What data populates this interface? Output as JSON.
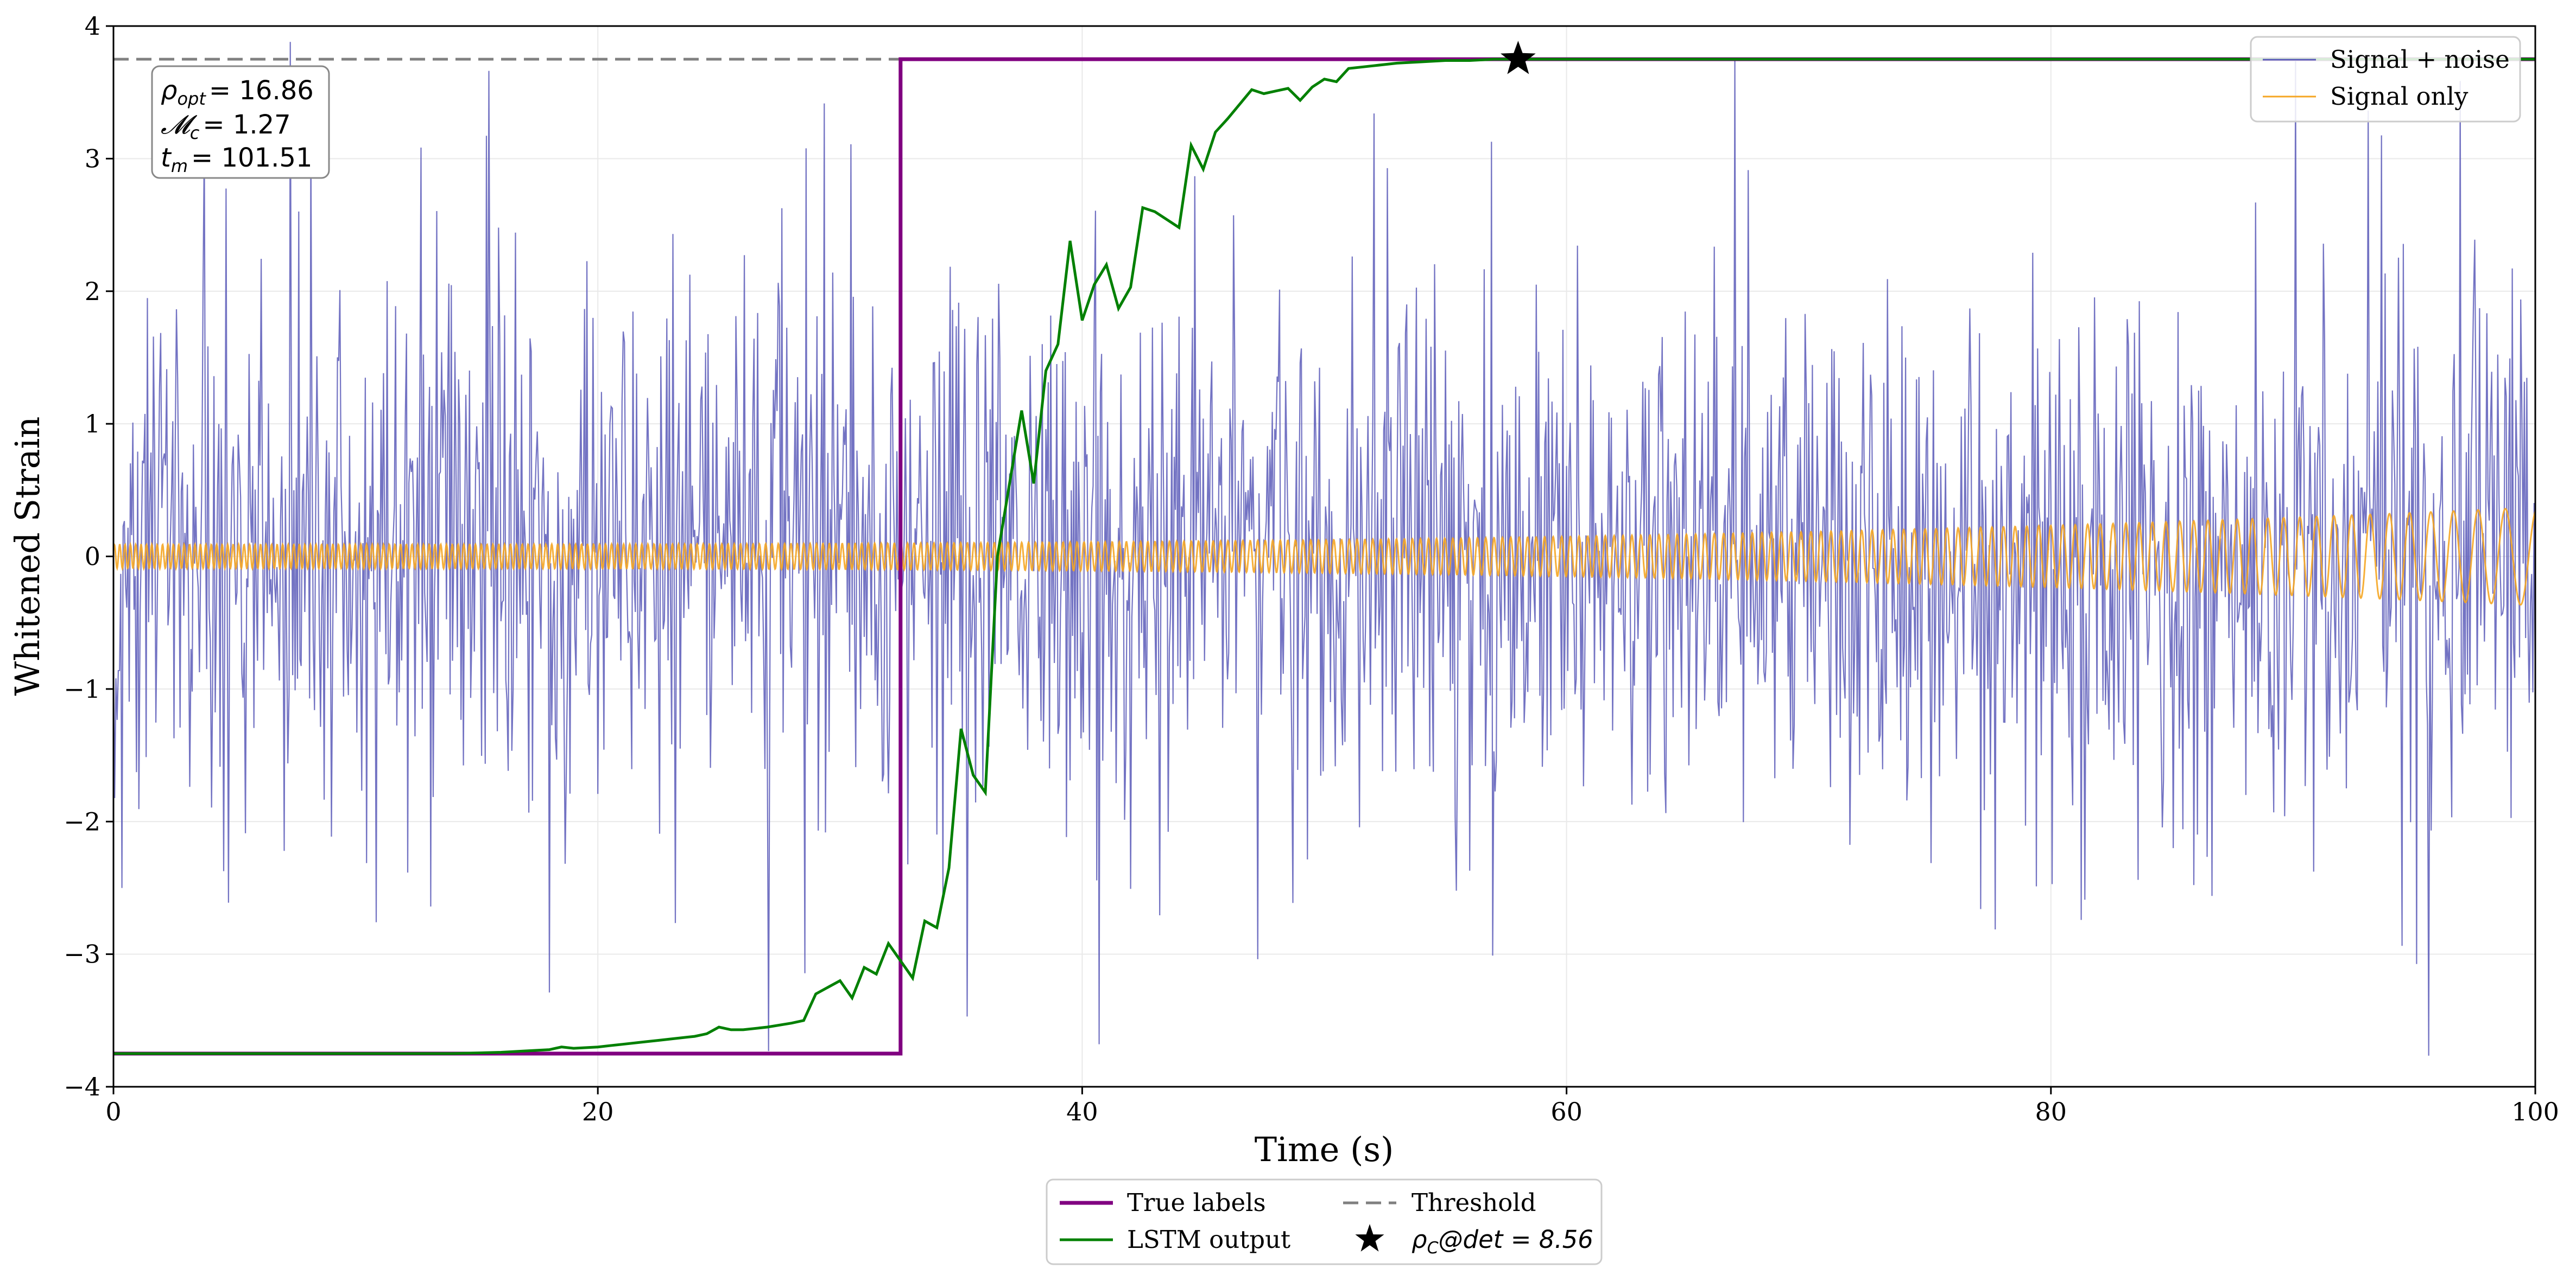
{
  "chart_data": {
    "type": "line",
    "xlabel": "Time (s)",
    "ylabel": "Whitened Strain",
    "xlim": [
      0,
      100
    ],
    "ylim": [
      -4,
      4
    ],
    "x_ticks": [
      0,
      20,
      40,
      60,
      80,
      100
    ],
    "y_ticks": [
      -4,
      -3,
      -2,
      -1,
      0,
      1,
      2,
      3,
      4
    ],
    "x_tick_labels": [
      "0",
      "20",
      "40",
      "60",
      "80",
      "100"
    ],
    "y_tick_labels": [
      "−4",
      "−3",
      "−2",
      "−1",
      "0",
      "1",
      "2",
      "3",
      "4"
    ],
    "grid": true,
    "threshold": 3.75,
    "annotation": {
      "rho_opt": "ρ_opt = 16.86",
      "mc": "𝓜_c = 1.27",
      "tm": "t_m = 101.51"
    },
    "annotation_parts": {
      "rho_sym": "ρ",
      "rho_sub": "opt",
      "rho_val": "= 16.86",
      "mc_sym": "𝓜",
      "mc_sub": "c",
      "mc_val": "= 1.27",
      "tm_sym": "t",
      "tm_sub": "m",
      "tm_val": "= 101.51"
    },
    "detection_marker": {
      "x": 58,
      "y": 3.75,
      "label": "ρ_C@det = 8.56"
    },
    "detection_label_parts": {
      "sym": "ρ",
      "sub": "C",
      "rest": "@det = 8.56"
    },
    "series": [
      {
        "name": "True labels",
        "color": "#800080",
        "style": "solid",
        "x": [
          0,
          32.5,
          32.5,
          100
        ],
        "y": [
          -3.75,
          -3.75,
          3.75,
          3.75
        ]
      },
      {
        "name": "LSTM output",
        "color": "#008000",
        "style": "solid",
        "x": [
          0,
          10,
          14,
          16,
          17,
          18,
          18.5,
          19,
          20,
          20.5,
          21,
          22,
          22.5,
          23,
          24,
          24.5,
          25,
          25.5,
          26,
          27,
          28,
          28.5,
          29,
          30,
          30.5,
          31,
          31.5,
          32,
          32.5,
          33,
          33.5,
          34,
          34.5,
          35,
          35.5,
          36,
          36.5,
          37,
          37.5,
          38,
          38.5,
          39,
          39.5,
          40,
          40.5,
          41,
          41.5,
          42,
          42.5,
          43,
          44,
          44.5,
          45,
          45.5,
          46,
          47,
          47.5,
          48,
          48.5,
          49,
          49.5,
          50,
          50.5,
          51,
          52,
          53,
          54,
          55,
          56,
          57,
          58,
          60,
          100
        ],
        "y": [
          -3.75,
          -3.75,
          -3.75,
          -3.74,
          -3.73,
          -3.72,
          -3.7,
          -3.71,
          -3.7,
          -3.69,
          -3.68,
          -3.66,
          -3.65,
          -3.64,
          -3.62,
          -3.6,
          -3.55,
          -3.57,
          -3.57,
          -3.55,
          -3.52,
          -3.5,
          -3.3,
          -3.2,
          -3.33,
          -3.1,
          -3.15,
          -2.92,
          -3.05,
          -3.18,
          -2.75,
          -2.8,
          -2.35,
          -1.3,
          -1.65,
          -1.78,
          0.0,
          0.55,
          1.1,
          0.55,
          1.4,
          1.6,
          2.38,
          1.78,
          2.05,
          2.2,
          1.87,
          2.03,
          2.63,
          2.6,
          2.48,
          3.1,
          2.92,
          3.2,
          3.3,
          3.52,
          3.49,
          3.51,
          3.53,
          3.44,
          3.54,
          3.6,
          3.58,
          3.68,
          3.7,
          3.72,
          3.73,
          3.74,
          3.74,
          3.75,
          3.75,
          3.75,
          3.75
        ]
      },
      {
        "name": "Signal + noise",
        "color": "#5b5bb8",
        "style": "solid",
        "generated": "gaussian noise, sigma ≈ 1.0, fs ≈ 20 Hz, occasional peaks to ±3.8"
      },
      {
        "name": "Signal only",
        "color": "#f5a623",
        "style": "solid",
        "generated": "chirp, amplitude 0.1 rising to 0.4, frequency increasing toward t = 100"
      },
      {
        "name": "Threshold",
        "color": "#808080",
        "style": "dashed",
        "y": 3.75
      }
    ],
    "legend_top_right": [
      "Signal + noise",
      "Signal only"
    ],
    "legend_bottom": [
      "True labels",
      "Threshold",
      "LSTM output",
      "ρ_C@det = 8.56"
    ]
  }
}
